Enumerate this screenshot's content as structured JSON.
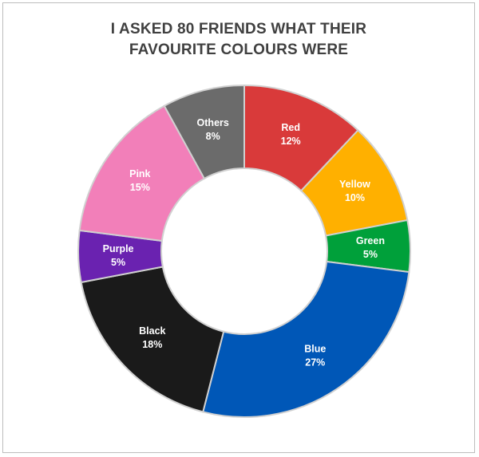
{
  "chart_data": {
    "type": "pie",
    "variant": "doughnut",
    "title_lines": [
      "I ASKED 80 FRIENDS WHAT THEIR",
      "FAVOURITE COLOURS WERE"
    ],
    "slices": [
      {
        "name": "Red",
        "value": 12,
        "label": "12%",
        "color": "#d93a3a"
      },
      {
        "name": "Yellow",
        "value": 10,
        "label": "10%",
        "color": "#ffb000"
      },
      {
        "name": "Green",
        "value": 5,
        "label": "5%",
        "color": "#00a03a"
      },
      {
        "name": "Blue",
        "value": 27,
        "label": "27%",
        "color": "#0057b7"
      },
      {
        "name": "Black",
        "value": 18,
        "label": "18%",
        "color": "#1a1a1a"
      },
      {
        "name": "Purple",
        "value": 5,
        "label": "5%",
        "color": "#6a22b0"
      },
      {
        "name": "Pink",
        "value": 15,
        "label": "15%",
        "color": "#f27fb9"
      },
      {
        "name": "Others",
        "value": 8,
        "label": "8%",
        "color": "#6b6b6b"
      }
    ],
    "legend": "none"
  }
}
